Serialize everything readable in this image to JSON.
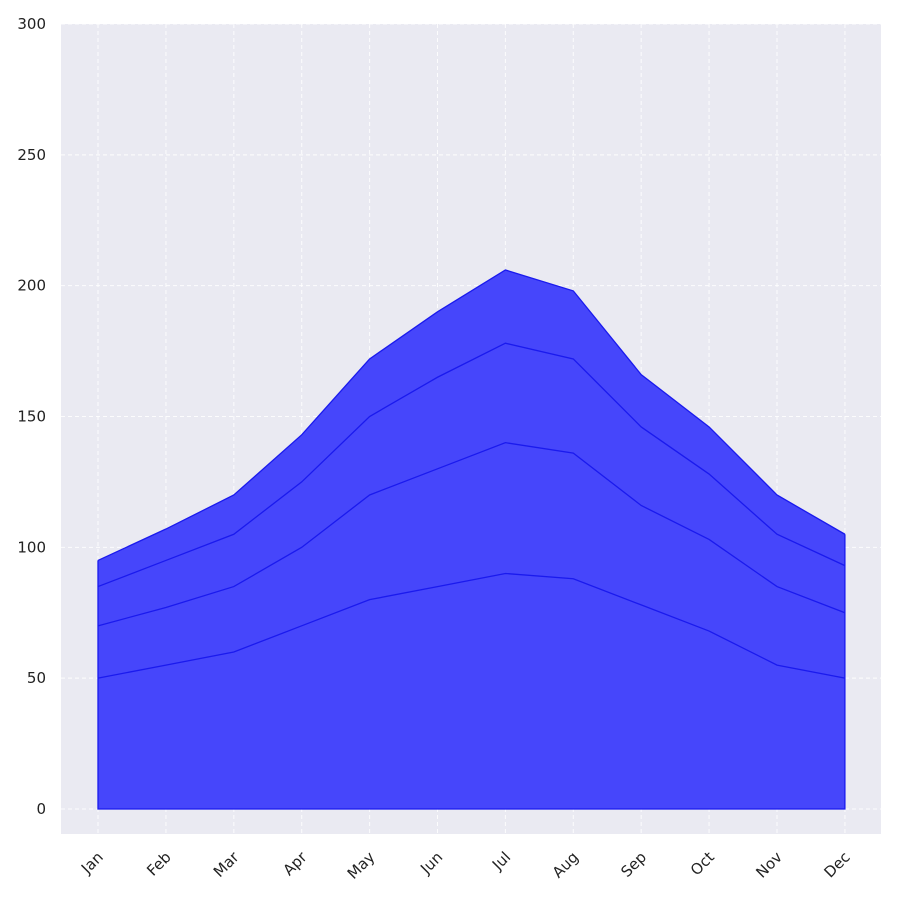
{
  "chart_data": {
    "type": "area",
    "stacked": true,
    "title": "",
    "xlabel": "",
    "ylabel": "",
    "categories": [
      "Jan",
      "Feb",
      "Mar",
      "Apr",
      "May",
      "Jun",
      "Jul",
      "Aug",
      "Sep",
      "Oct",
      "Nov",
      "Dec"
    ],
    "series": [
      {
        "values": [
          50,
          55,
          60,
          70,
          80,
          85,
          90,
          88,
          78,
          68,
          55,
          50
        ]
      },
      {
        "values": [
          20,
          22,
          25,
          30,
          40,
          45,
          50,
          48,
          38,
          35,
          30,
          25
        ]
      },
      {
        "values": [
          15,
          18,
          20,
          25,
          30,
          35,
          38,
          36,
          30,
          25,
          20,
          18
        ]
      },
      {
        "values": [
          10,
          12,
          15,
          18,
          22,
          25,
          28,
          26,
          20,
          18,
          15,
          12
        ]
      }
    ],
    "ylim": [
      0,
      300
    ],
    "yticks": [
      0,
      50,
      100,
      150,
      200,
      250,
      300
    ],
    "grid": true,
    "colors": {
      "fill": "#4646fb",
      "line": "#1a1aee",
      "plot_background": "#eaeaf2",
      "grid": "#ffffff",
      "tick_text": "#222222"
    }
  }
}
